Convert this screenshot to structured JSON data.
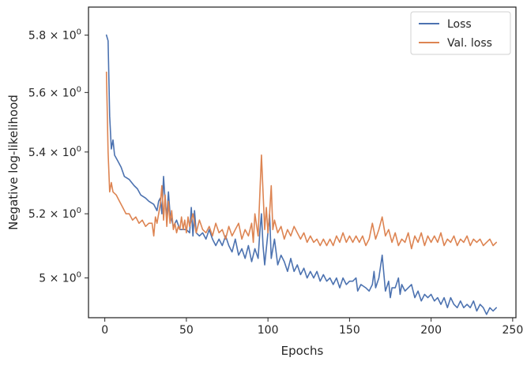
{
  "chart_data": {
    "type": "line",
    "title": "",
    "xlabel": "Epochs",
    "ylabel": "Negative log-likelihood",
    "xlim": [
      -10,
      252
    ],
    "ylim": [
      4.88,
      5.9
    ],
    "yscale": "log",
    "xticks": [
      0,
      50,
      100,
      150,
      200,
      250
    ],
    "yticks": [
      5.0,
      5.2,
      5.4,
      5.6,
      5.8
    ],
    "ytick_labels": [
      {
        "mantissa": "5",
        "base": "10",
        "exp": "0"
      },
      {
        "mantissa": "5.2",
        "base": "10",
        "exp": "0"
      },
      {
        "mantissa": "5.4",
        "base": "10",
        "exp": "0"
      },
      {
        "mantissa": "5.6",
        "base": "10",
        "exp": "0"
      },
      {
        "mantissa": "5.8",
        "base": "10",
        "exp": "0"
      }
    ],
    "grid": false,
    "legend_position": "top-right",
    "series": [
      {
        "name": "Loss",
        "color": "#4c72b0",
        "points": [
          [
            1,
            5.8
          ],
          [
            2,
            5.78
          ],
          [
            3,
            5.52
          ],
          [
            4,
            5.41
          ],
          [
            5,
            5.44
          ],
          [
            6,
            5.39
          ],
          [
            8,
            5.37
          ],
          [
            10,
            5.35
          ],
          [
            12,
            5.32
          ],
          [
            15,
            5.31
          ],
          [
            18,
            5.29
          ],
          [
            20,
            5.28
          ],
          [
            22,
            5.26
          ],
          [
            25,
            5.25
          ],
          [
            27,
            5.24
          ],
          [
            30,
            5.23
          ],
          [
            32,
            5.21
          ],
          [
            33,
            5.24
          ],
          [
            34,
            5.25
          ],
          [
            35,
            5.2
          ],
          [
            36,
            5.32
          ],
          [
            37,
            5.24
          ],
          [
            38,
            5.19
          ],
          [
            39,
            5.27
          ],
          [
            40,
            5.2
          ],
          [
            42,
            5.16
          ],
          [
            44,
            5.18
          ],
          [
            46,
            5.15
          ],
          [
            48,
            5.15
          ],
          [
            50,
            5.15
          ],
          [
            52,
            5.14
          ],
          [
            53,
            5.22
          ],
          [
            54,
            5.13
          ],
          [
            55,
            5.21
          ],
          [
            56,
            5.14
          ],
          [
            58,
            5.13
          ],
          [
            60,
            5.14
          ],
          [
            62,
            5.12
          ],
          [
            64,
            5.15
          ],
          [
            66,
            5.12
          ],
          [
            68,
            5.1
          ],
          [
            70,
            5.12
          ],
          [
            72,
            5.1
          ],
          [
            74,
            5.13
          ],
          [
            76,
            5.1
          ],
          [
            78,
            5.08
          ],
          [
            80,
            5.12
          ],
          [
            82,
            5.07
          ],
          [
            84,
            5.09
          ],
          [
            86,
            5.06
          ],
          [
            88,
            5.1
          ],
          [
            90,
            5.05
          ],
          [
            92,
            5.09
          ],
          [
            94,
            5.06
          ],
          [
            95,
            5.14
          ],
          [
            96,
            5.2
          ],
          [
            97,
            5.1
          ],
          [
            98,
            5.04
          ],
          [
            100,
            5.14
          ],
          [
            101,
            5.2
          ],
          [
            102,
            5.06
          ],
          [
            104,
            5.12
          ],
          [
            106,
            5.04
          ],
          [
            108,
            5.07
          ],
          [
            110,
            5.05
          ],
          [
            112,
            5.02
          ],
          [
            114,
            5.06
          ],
          [
            116,
            5.02
          ],
          [
            118,
            5.04
          ],
          [
            120,
            5.01
          ],
          [
            122,
            5.03
          ],
          [
            124,
            5.0
          ],
          [
            126,
            5.02
          ],
          [
            128,
            5.0
          ],
          [
            130,
            5.02
          ],
          [
            132,
            4.99
          ],
          [
            134,
            5.01
          ],
          [
            136,
            4.99
          ],
          [
            138,
            5.0
          ],
          [
            140,
            4.98
          ],
          [
            142,
            5.0
          ],
          [
            144,
            4.97
          ],
          [
            146,
            5.0
          ],
          [
            148,
            4.98
          ],
          [
            150,
            4.99
          ],
          [
            152,
            4.99
          ],
          [
            154,
            5.0
          ],
          [
            155,
            4.96
          ],
          [
            157,
            4.98
          ],
          [
            160,
            4.97
          ],
          [
            162,
            4.96
          ],
          [
            164,
            4.98
          ],
          [
            165,
            5.02
          ],
          [
            166,
            4.97
          ],
          [
            168,
            5.0
          ],
          [
            170,
            5.07
          ],
          [
            172,
            4.96
          ],
          [
            174,
            4.99
          ],
          [
            175,
            4.94
          ],
          [
            176,
            4.97
          ],
          [
            178,
            4.97
          ],
          [
            180,
            5.0
          ],
          [
            181,
            4.95
          ],
          [
            182,
            4.98
          ],
          [
            184,
            4.96
          ],
          [
            186,
            4.97
          ],
          [
            188,
            4.98
          ],
          [
            190,
            4.94
          ],
          [
            192,
            4.96
          ],
          [
            194,
            4.93
          ],
          [
            196,
            4.95
          ],
          [
            198,
            4.94
          ],
          [
            200,
            4.95
          ],
          [
            202,
            4.93
          ],
          [
            204,
            4.94
          ],
          [
            206,
            4.92
          ],
          [
            208,
            4.94
          ],
          [
            210,
            4.91
          ],
          [
            212,
            4.94
          ],
          [
            214,
            4.92
          ],
          [
            216,
            4.91
          ],
          [
            218,
            4.93
          ],
          [
            220,
            4.91
          ],
          [
            222,
            4.92
          ],
          [
            224,
            4.91
          ],
          [
            226,
            4.93
          ],
          [
            228,
            4.9
          ],
          [
            230,
            4.92
          ],
          [
            232,
            4.91
          ],
          [
            234,
            4.89
          ],
          [
            236,
            4.91
          ],
          [
            238,
            4.9
          ],
          [
            240,
            4.91
          ]
        ]
      },
      {
        "name": "Val. loss",
        "color": "#dd8452",
        "points": [
          [
            1,
            5.67
          ],
          [
            2,
            5.4
          ],
          [
            3,
            5.27
          ],
          [
            4,
            5.3
          ],
          [
            5,
            5.27
          ],
          [
            7,
            5.26
          ],
          [
            9,
            5.24
          ],
          [
            11,
            5.22
          ],
          [
            13,
            5.2
          ],
          [
            15,
            5.2
          ],
          [
            17,
            5.18
          ],
          [
            19,
            5.19
          ],
          [
            21,
            5.17
          ],
          [
            23,
            5.18
          ],
          [
            25,
            5.16
          ],
          [
            27,
            5.17
          ],
          [
            29,
            5.17
          ],
          [
            30,
            5.13
          ],
          [
            31,
            5.19
          ],
          [
            32,
            5.17
          ],
          [
            34,
            5.23
          ],
          [
            35,
            5.29
          ],
          [
            36,
            5.18
          ],
          [
            37,
            5.26
          ],
          [
            38,
            5.16
          ],
          [
            39,
            5.24
          ],
          [
            40,
            5.17
          ],
          [
            41,
            5.21
          ],
          [
            42,
            5.15
          ],
          [
            43,
            5.17
          ],
          [
            44,
            5.14
          ],
          [
            45,
            5.16
          ],
          [
            46,
            5.15
          ],
          [
            47,
            5.19
          ],
          [
            48,
            5.15
          ],
          [
            49,
            5.18
          ],
          [
            50,
            5.14
          ],
          [
            51,
            5.19
          ],
          [
            52,
            5.16
          ],
          [
            54,
            5.2
          ],
          [
            56,
            5.14
          ],
          [
            58,
            5.18
          ],
          [
            60,
            5.15
          ],
          [
            62,
            5.14
          ],
          [
            64,
            5.16
          ],
          [
            66,
            5.13
          ],
          [
            68,
            5.17
          ],
          [
            70,
            5.14
          ],
          [
            72,
            5.15
          ],
          [
            74,
            5.12
          ],
          [
            76,
            5.16
          ],
          [
            78,
            5.13
          ],
          [
            80,
            5.15
          ],
          [
            82,
            5.17
          ],
          [
            84,
            5.12
          ],
          [
            86,
            5.15
          ],
          [
            88,
            5.13
          ],
          [
            90,
            5.17
          ],
          [
            91,
            5.11
          ],
          [
            92,
            5.2
          ],
          [
            94,
            5.13
          ],
          [
            96,
            5.39
          ],
          [
            97,
            5.27
          ],
          [
            98,
            5.15
          ],
          [
            99,
            5.22
          ],
          [
            100,
            5.14
          ],
          [
            101,
            5.2
          ],
          [
            102,
            5.29
          ],
          [
            103,
            5.15
          ],
          [
            104,
            5.18
          ],
          [
            106,
            5.14
          ],
          [
            108,
            5.16
          ],
          [
            110,
            5.12
          ],
          [
            112,
            5.15
          ],
          [
            114,
            5.13
          ],
          [
            116,
            5.16
          ],
          [
            118,
            5.14
          ],
          [
            120,
            5.12
          ],
          [
            122,
            5.14
          ],
          [
            124,
            5.11
          ],
          [
            126,
            5.13
          ],
          [
            128,
            5.11
          ],
          [
            130,
            5.12
          ],
          [
            132,
            5.1
          ],
          [
            134,
            5.12
          ],
          [
            136,
            5.1
          ],
          [
            138,
            5.12
          ],
          [
            140,
            5.1
          ],
          [
            142,
            5.13
          ],
          [
            144,
            5.11
          ],
          [
            146,
            5.14
          ],
          [
            148,
            5.11
          ],
          [
            150,
            5.13
          ],
          [
            152,
            5.11
          ],
          [
            154,
            5.13
          ],
          [
            156,
            5.11
          ],
          [
            158,
            5.13
          ],
          [
            160,
            5.1
          ],
          [
            162,
            5.12
          ],
          [
            164,
            5.17
          ],
          [
            166,
            5.12
          ],
          [
            168,
            5.15
          ],
          [
            170,
            5.19
          ],
          [
            172,
            5.13
          ],
          [
            174,
            5.15
          ],
          [
            176,
            5.11
          ],
          [
            178,
            5.14
          ],
          [
            180,
            5.1
          ],
          [
            182,
            5.12
          ],
          [
            184,
            5.11
          ],
          [
            186,
            5.14
          ],
          [
            188,
            5.09
          ],
          [
            190,
            5.13
          ],
          [
            192,
            5.11
          ],
          [
            194,
            5.14
          ],
          [
            196,
            5.1
          ],
          [
            198,
            5.13
          ],
          [
            200,
            5.11
          ],
          [
            202,
            5.13
          ],
          [
            204,
            5.11
          ],
          [
            206,
            5.14
          ],
          [
            208,
            5.1
          ],
          [
            210,
            5.12
          ],
          [
            212,
            5.11
          ],
          [
            214,
            5.13
          ],
          [
            216,
            5.1
          ],
          [
            218,
            5.12
          ],
          [
            220,
            5.11
          ],
          [
            222,
            5.13
          ],
          [
            224,
            5.1
          ],
          [
            226,
            5.12
          ],
          [
            228,
            5.11
          ],
          [
            230,
            5.12
          ],
          [
            232,
            5.1
          ],
          [
            234,
            5.11
          ],
          [
            236,
            5.12
          ],
          [
            238,
            5.1
          ],
          [
            240,
            5.11
          ]
        ]
      }
    ]
  }
}
